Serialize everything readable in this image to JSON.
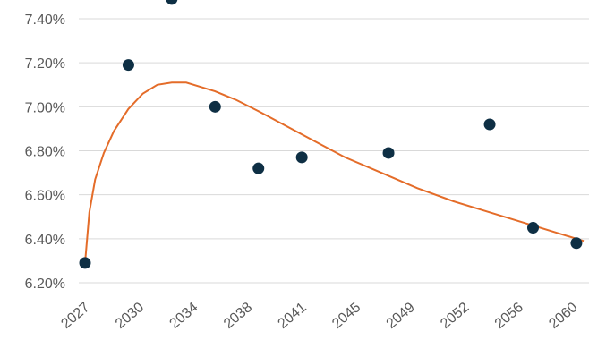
{
  "chart_data": {
    "type": "scatter",
    "title": "",
    "xlabel": "",
    "ylabel": "",
    "xlim": [
      2027,
      2061.5
    ],
    "ylim": [
      6.2,
      7.4
    ],
    "grid": "horizontal",
    "y_ticks": [
      "7.40%",
      "7.20%",
      "7.00%",
      "6.80%",
      "6.60%",
      "6.40%",
      "6.20%"
    ],
    "y_tick_values": [
      7.4,
      7.2,
      7.0,
      6.8,
      6.6,
      6.4,
      6.2
    ],
    "x_ticks": [
      "2027",
      "2030",
      "2034",
      "2038",
      "2041",
      "2045",
      "2049",
      "2052",
      "2056",
      "2060"
    ],
    "x_tick_values": [
      2027,
      2030.75,
      2034.5,
      2038.25,
      2042,
      2045.75,
      2049.5,
      2053.25,
      2057,
      2060.75
    ],
    "series": [
      {
        "type": "scatter",
        "color": "#0e2f44",
        "points": [
          {
            "x": 2027,
            "y": 6.29
          },
          {
            "x": 2030,
            "y": 7.19
          },
          {
            "x": 2033,
            "y": 7.49
          },
          {
            "x": 2036,
            "y": 7.0
          },
          {
            "x": 2039,
            "y": 6.72
          },
          {
            "x": 2042,
            "y": 6.77
          },
          {
            "x": 2048,
            "y": 6.79
          },
          {
            "x": 2055,
            "y": 6.92
          },
          {
            "x": 2058,
            "y": 6.45
          },
          {
            "x": 2061,
            "y": 6.38
          }
        ]
      },
      {
        "type": "line",
        "color": "#e46c29",
        "points": [
          {
            "x": 2027.0,
            "y": 6.29
          },
          {
            "x": 2027.3,
            "y": 6.52
          },
          {
            "x": 2027.7,
            "y": 6.67
          },
          {
            "x": 2028.3,
            "y": 6.79
          },
          {
            "x": 2029.0,
            "y": 6.89
          },
          {
            "x": 2030.0,
            "y": 6.99
          },
          {
            "x": 2031.0,
            "y": 7.06
          },
          {
            "x": 2032.0,
            "y": 7.1
          },
          {
            "x": 2033.0,
            "y": 7.11
          },
          {
            "x": 2034.0,
            "y": 7.11
          },
          {
            "x": 2035.0,
            "y": 7.09
          },
          {
            "x": 2036.0,
            "y": 7.07
          },
          {
            "x": 2037.5,
            "y": 7.03
          },
          {
            "x": 2039.0,
            "y": 6.98
          },
          {
            "x": 2041.0,
            "y": 6.91
          },
          {
            "x": 2043.0,
            "y": 6.84
          },
          {
            "x": 2045.0,
            "y": 6.77
          },
          {
            "x": 2047.5,
            "y": 6.7
          },
          {
            "x": 2050.0,
            "y": 6.63
          },
          {
            "x": 2052.5,
            "y": 6.57
          },
          {
            "x": 2055.0,
            "y": 6.52
          },
          {
            "x": 2057.5,
            "y": 6.47
          },
          {
            "x": 2060.0,
            "y": 6.42
          },
          {
            "x": 2061.5,
            "y": 6.39
          }
        ]
      }
    ]
  }
}
